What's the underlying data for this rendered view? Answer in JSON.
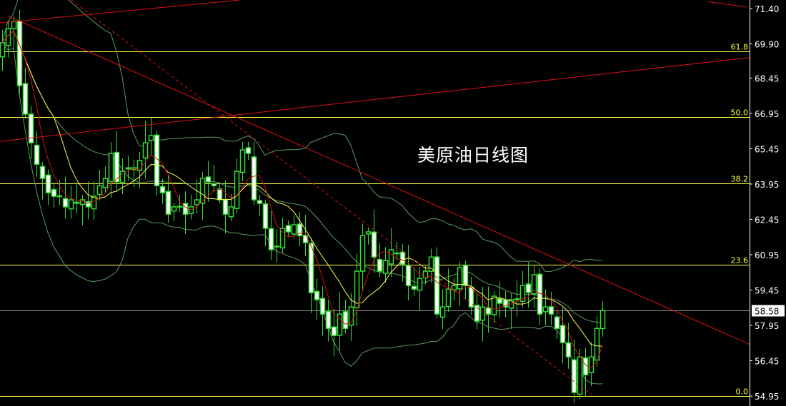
{
  "chart_data": {
    "type": "candlestick",
    "title": "美原油日线图",
    "ylim": [
      54.95,
      71.4
    ],
    "y_ticks": [
      "71.40",
      "69.90",
      "68.45",
      "66.95",
      "65.45",
      "63.95",
      "62.45",
      "60.95",
      "59.45",
      "57.95",
      "56.45",
      "54.95"
    ],
    "current_price": "58.58",
    "close": [
      69.95,
      70.55,
      70.85,
      68.13,
      66.92,
      65.7,
      64.79,
      64.19,
      63.58,
      63.43,
      63.43,
      62.98,
      63.28,
      63.13,
      63.28,
      62.98,
      63.43,
      63.88,
      64.19,
      65.25,
      64.04,
      64.49,
      64.64,
      64.64,
      64.95,
      65.7,
      66.01,
      63.88,
      63.58,
      62.67,
      62.98,
      62.98,
      62.67,
      62.98,
      63.28,
      64.19,
      64.04,
      63.88,
      63.28,
      62.67,
      62.98,
      64.49,
      65.4,
      65.25,
      63.28,
      63.13,
      62.07,
      61.16,
      61.31,
      62.07,
      61.92,
      62.22,
      61.76,
      61.46,
      59.34,
      59.04,
      58.43,
      57.82,
      57.52,
      58.43,
      57.82,
      58.73,
      60.25,
      61.76,
      61.92,
      60.85,
      60.25,
      60.7,
      61.16,
      61.01,
      60.55,
      59.64,
      59.49,
      59.95,
      60.25,
      60.85,
      58.43,
      58.73,
      59.49,
      59.64,
      60.4,
      59.64,
      58.73,
      58.13,
      58.73,
      58.43,
      59.19,
      58.89,
      58.73,
      59.04,
      59.04,
      59.64,
      59.34,
      60.1,
      58.43,
      58.73,
      58.43,
      57.82,
      57.22,
      56.61,
      55.1,
      56.61,
      55.85,
      56.61,
      57.82,
      58.58
    ],
    "indicators": {
      "ma_short": {
        "period": 5,
        "color": "#d01010"
      },
      "ma_long": {
        "period": 10,
        "color": "#ffff55"
      },
      "bollinger": {
        "period": 20,
        "k": 2,
        "color": "#5a9a62"
      }
    },
    "fibonacci": {
      "low": 54.95,
      "high": 78.62,
      "color": "#ffff44",
      "levels": [
        {
          "label": "0.0",
          "ratio": 0.0
        },
        {
          "label": "23.6",
          "ratio": 0.236
        },
        {
          "label": "38.2",
          "ratio": 0.382
        },
        {
          "label": "50.0",
          "ratio": 0.5
        },
        {
          "label": "61.8",
          "ratio": 0.618
        }
      ]
    },
    "trendlines": [
      {
        "name": "rising-trendline",
        "style": "solid",
        "from": [
          -0.4,
          65.76
        ],
        "to": [
          137.1,
          69.49
        ]
      },
      {
        "name": "top-trendline",
        "style": "solid",
        "from": [
          -0.4,
          70.79
        ],
        "to": [
          41.5,
          71.76
        ]
      },
      {
        "name": "top-right-trendline",
        "style": "solid",
        "from": [
          123.4,
          71.7
        ],
        "to": [
          130.3,
          71.46
        ]
      },
      {
        "name": "falling-trendline",
        "style": "solid",
        "from": [
          0.9,
          71.1
        ],
        "to": [
          137.1,
          56.46
        ]
      },
      {
        "name": "falling-dashed-trendline",
        "style": "dashed",
        "from": [
          12.1,
          71.76
        ],
        "to": [
          103.4,
          54.95
        ]
      }
    ],
    "colors": {
      "background": "#000000",
      "candle_border": "#33dd33",
      "bear_fill": "#ffffff",
      "bull_fill": "#000000",
      "trendline": "#dd1111",
      "axis": "#ffffff",
      "price_line": "#888888"
    }
  }
}
